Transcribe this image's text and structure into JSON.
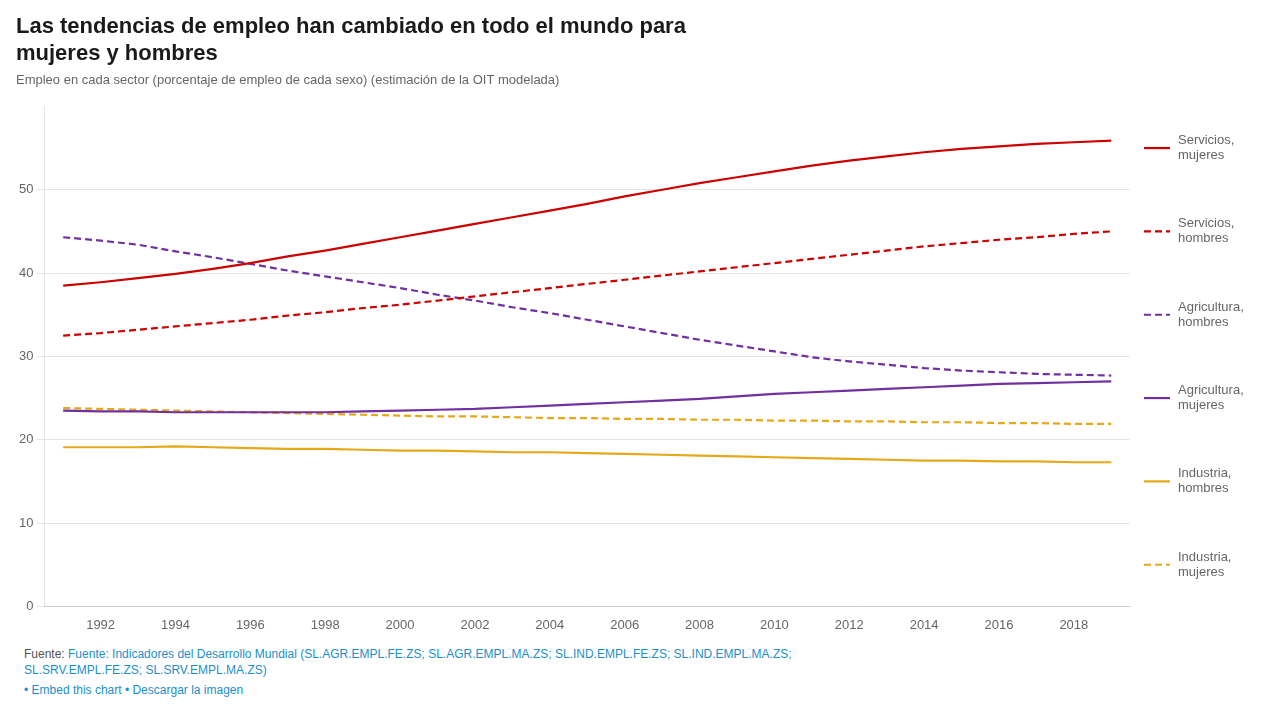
{
  "chart_data": {
    "type": "line",
    "title": "Las tendencias de empleo han cambiado en todo el mundo para\nmujeres y hombres",
    "subtitle": "Empleo en cada sector (porcentaje de empleo de cada sexo) (estimación de la OIT modelada)",
    "x": [
      1991,
      1992,
      1993,
      1994,
      1995,
      1996,
      1997,
      1998,
      1999,
      2000,
      2001,
      2002,
      2003,
      2004,
      2005,
      2006,
      2007,
      2008,
      2009,
      2010,
      2011,
      2012,
      2013,
      2014,
      2015,
      2016,
      2017,
      2018,
      2019
    ],
    "xlim": [
      1990.5,
      2019.5
    ],
    "xticks": [
      1992,
      1994,
      1996,
      1998,
      2000,
      2002,
      2004,
      2006,
      2008,
      2010,
      2012,
      2014,
      2016,
      2018
    ],
    "ylim": [
      0,
      60
    ],
    "yticks": [
      0,
      10,
      20,
      30,
      40,
      50
    ],
    "grid": true,
    "legend": "right",
    "series": [
      {
        "name": "Servicios,\nmujeres",
        "color": "#cc0000",
        "line_style": "solid",
        "values": [
          38.5,
          38.9,
          39.4,
          39.9,
          40.5,
          41.2,
          42.0,
          42.7,
          43.5,
          44.3,
          45.1,
          45.9,
          46.7,
          47.5,
          48.3,
          49.2,
          50.0,
          50.8,
          51.5,
          52.2,
          52.9,
          53.5,
          54.0,
          54.5,
          54.9,
          55.2,
          55.5,
          55.7,
          55.9
        ]
      },
      {
        "name": "Servicios,\nhombres",
        "color": "#cc0000",
        "line_style": "dashed",
        "values": [
          32.5,
          32.8,
          33.2,
          33.6,
          34.0,
          34.4,
          34.9,
          35.3,
          35.8,
          36.2,
          36.7,
          37.2,
          37.7,
          38.2,
          38.7,
          39.2,
          39.7,
          40.2,
          40.7,
          41.2,
          41.7,
          42.2,
          42.7,
          43.2,
          43.6,
          44.0,
          44.3,
          44.7,
          45.0
        ]
      },
      {
        "name": "Agricultura,\nhombres",
        "color": "#7030a0",
        "line_style": "dashed",
        "values": [
          44.3,
          43.9,
          43.4,
          42.6,
          41.9,
          41.1,
          40.3,
          39.6,
          38.9,
          38.2,
          37.4,
          36.7,
          35.9,
          35.2,
          34.4,
          33.6,
          32.8,
          32.0,
          31.3,
          30.6,
          29.9,
          29.4,
          29.0,
          28.6,
          28.3,
          28.1,
          27.9,
          27.8,
          27.7
        ]
      },
      {
        "name": "Agricultura,\nmujeres",
        "color": "#7030a0",
        "line_style": "solid",
        "values": [
          23.5,
          23.4,
          23.4,
          23.3,
          23.3,
          23.3,
          23.3,
          23.3,
          23.4,
          23.5,
          23.6,
          23.7,
          23.9,
          24.1,
          24.3,
          24.5,
          24.7,
          24.9,
          25.2,
          25.5,
          25.7,
          25.9,
          26.1,
          26.3,
          26.5,
          26.7,
          26.8,
          26.9,
          27.0
        ]
      },
      {
        "name": "Industria,\nhombres",
        "color": "#e6a817",
        "line_style": "solid",
        "values": [
          19.1,
          19.1,
          19.1,
          19.2,
          19.1,
          19.0,
          18.9,
          18.9,
          18.8,
          18.7,
          18.7,
          18.6,
          18.5,
          18.5,
          18.4,
          18.3,
          18.2,
          18.1,
          18.0,
          17.9,
          17.8,
          17.7,
          17.6,
          17.5,
          17.5,
          17.4,
          17.4,
          17.3,
          17.3
        ]
      },
      {
        "name": "Industria,\nmujeres",
        "color": "#e6a817",
        "line_style": "dashed",
        "values": [
          23.8,
          23.7,
          23.6,
          23.5,
          23.4,
          23.3,
          23.2,
          23.1,
          23.0,
          22.9,
          22.8,
          22.8,
          22.7,
          22.6,
          22.6,
          22.5,
          22.5,
          22.4,
          22.4,
          22.3,
          22.3,
          22.2,
          22.2,
          22.1,
          22.1,
          22.0,
          22.0,
          21.9,
          21.9
        ]
      }
    ],
    "annotations": [
      "Fuente: ",
      "Fuente: Indicadores del Desarrollo Mundial (SL.AGR.EMPL.FE.ZS; SL.AGR.EMPL.MA.ZS; SL.IND.EMPL.FE.ZS; SL.IND.EMPL.MA.ZS;\nSL.SRV.EMPL.FE.ZS; SL.SRV.EMPL.MA.ZS)",
      "• Embed this chart • Descargar la imagen"
    ]
  }
}
